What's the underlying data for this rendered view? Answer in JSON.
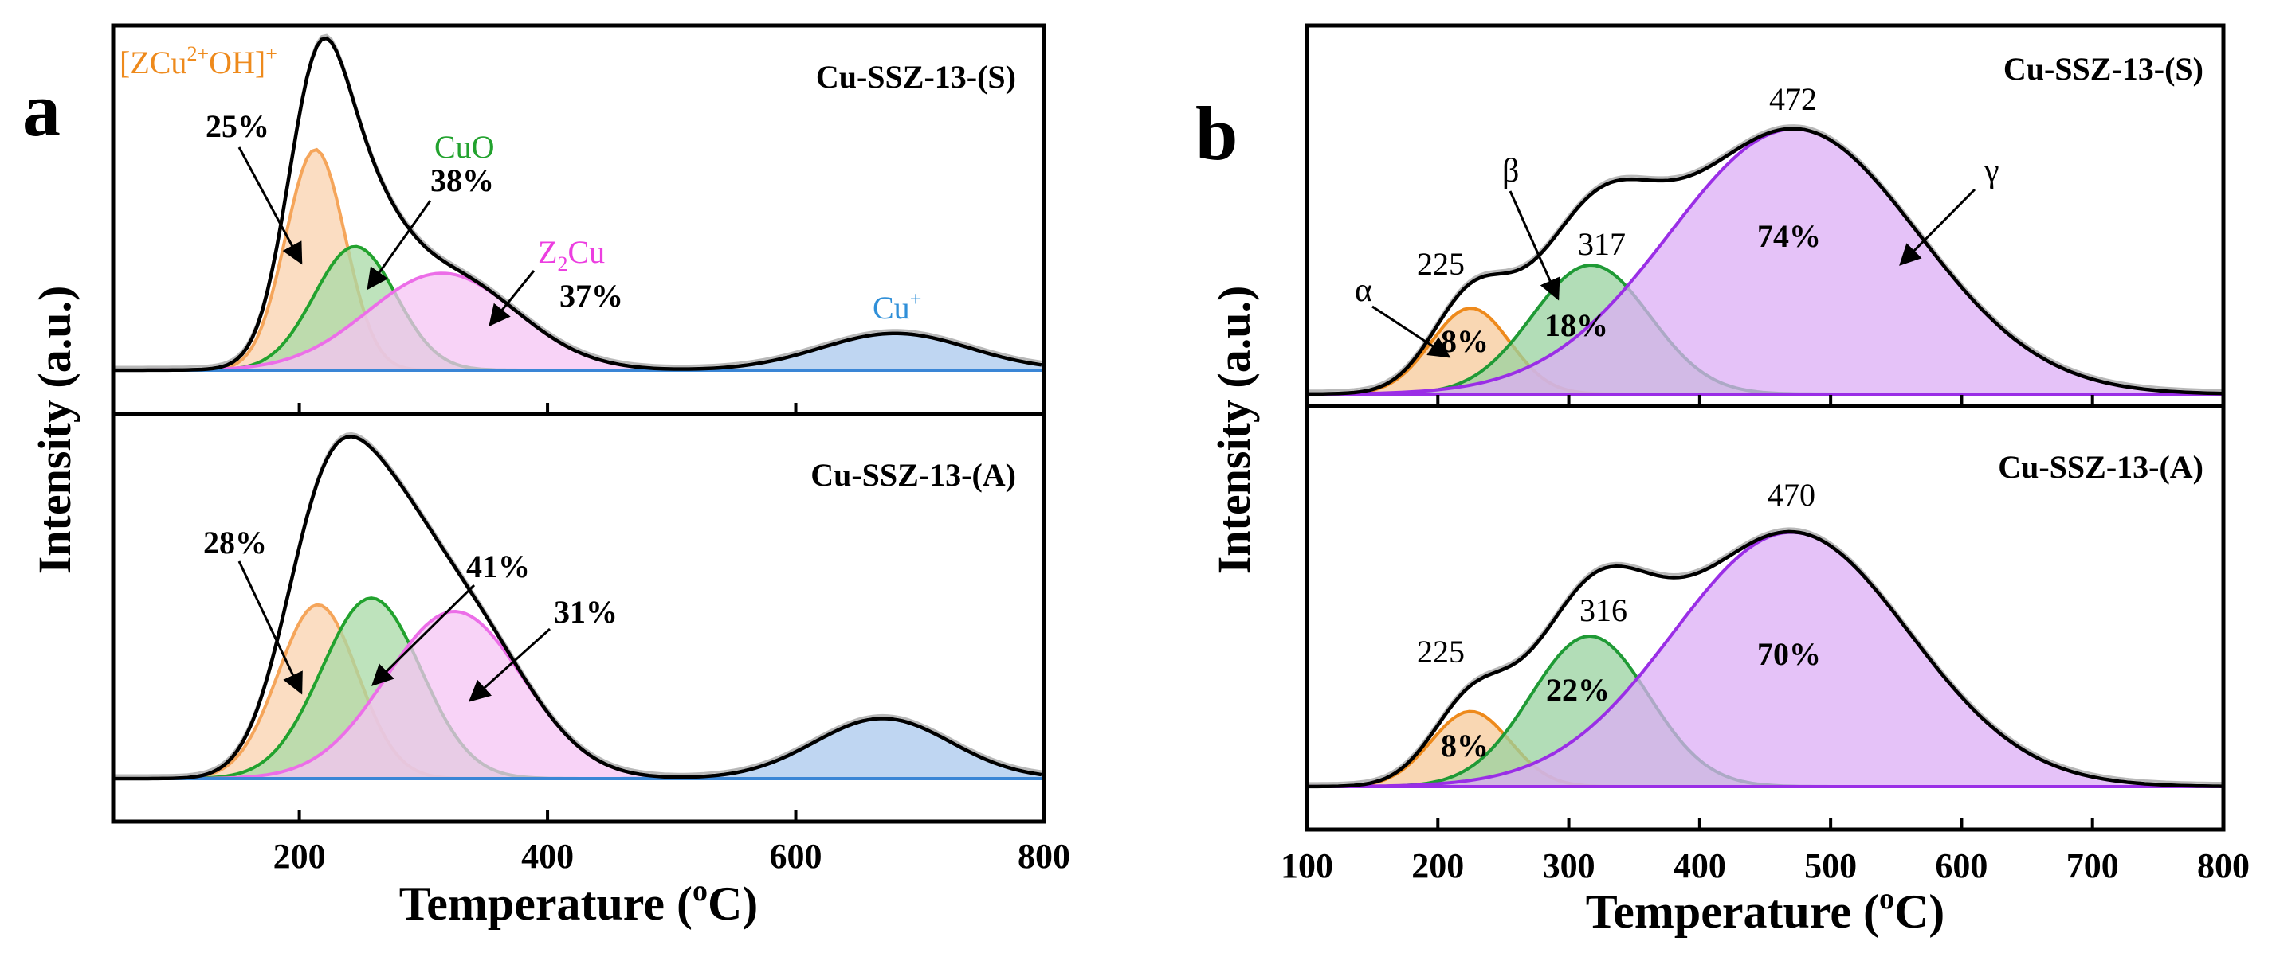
{
  "figure_label_a": "a",
  "figure_label_b": "b",
  "chart_data": [
    {
      "type": "area",
      "panel": "a",
      "xlabel": "Temperature (oC)",
      "xlabel_main": "Temperature (",
      "xlabel_sup": "o",
      "xlabel_end": "C)",
      "ylabel": "Intensity (a.u.)",
      "xlim": [
        50,
        800
      ],
      "xticks": [
        200,
        400,
        600,
        800
      ],
      "subplots": [
        {
          "title": "Cu-SSZ-13-(S)",
          "peaks": [
            {
              "name": "[ZCu2+OH]+",
              "center": 213,
              "height": 0.66,
              "width": 24,
              "color": "#f5a55a",
              "fill": "#f9d2ae",
              "pct": "25%"
            },
            {
              "name": "CuO",
              "center": 245,
              "height": 0.37,
              "width": 33,
              "color": "#22a22e",
              "fill": "#a8d9a5",
              "pct": "38%"
            },
            {
              "name": "Z2Cu",
              "center": 315,
              "height": 0.29,
              "width": 60,
              "color": "#ec6ee8",
              "fill": "#f6c4f4",
              "pct": "37%"
            },
            {
              "name": "Cu+",
              "center": 680,
              "height": 0.11,
              "width": 60,
              "color": "#4a90d9",
              "fill": "#a9c8ee",
              "pct": ""
            }
          ],
          "labels": {
            "p1_name": "[ZCu",
            "p1_sup": "2+",
            "p1_mid": "OH]",
            "p1_sup2": "+",
            "p2_name": "CuO",
            "p3_name": "Z",
            "p3_sub": "2",
            "p3_end": "Cu",
            "p4_name": "Cu",
            "p4_sup": "+"
          }
        },
        {
          "title": "Cu-SSZ-13-(A)",
          "peaks": [
            {
              "name": "[ZCu2+OH]+",
              "center": 215,
              "height": 0.52,
              "width": 32,
              "color": "#f5a55a",
              "fill": "#f9d2ae",
              "pct": "28%"
            },
            {
              "name": "CuO",
              "center": 258,
              "height": 0.54,
              "width": 40,
              "color": "#22a22e",
              "fill": "#a8d9a5",
              "pct": "41%"
            },
            {
              "name": "Z2Cu",
              "center": 325,
              "height": 0.5,
              "width": 55,
              "color": "#ec6ee8",
              "fill": "#f6c4f4",
              "pct": "31%"
            },
            {
              "name": "Cu+",
              "center": 670,
              "height": 0.18,
              "width": 55,
              "color": "#4a90d9",
              "fill": "#a9c8ee",
              "pct": ""
            }
          ]
        }
      ]
    },
    {
      "type": "area",
      "panel": "b",
      "xlabel": "Temperature (oC)",
      "xlabel_main": "Temperature (",
      "xlabel_sup": "o",
      "xlabel_end": "C)",
      "ylabel": "Intensity (a.u.)",
      "xlim": [
        100,
        800
      ],
      "xticks": [
        100,
        200,
        300,
        400,
        500,
        600,
        700,
        800
      ],
      "subplots": [
        {
          "title": "Cu-SSZ-13-(S)",
          "peaks": [
            {
              "name": "α",
              "center": 225,
              "height": 0.24,
              "width": 30,
              "color": "#ee8a1c",
              "fill": "#f7c99a",
              "pct": "8%",
              "peak_label": "225"
            },
            {
              "name": "β",
              "center": 317,
              "height": 0.36,
              "width": 45,
              "color": "#1f9a35",
              "fill": "#98d19f",
              "pct": "18%",
              "peak_label": "317"
            },
            {
              "name": "γ",
              "center": 472,
              "height": 0.74,
              "width": 95,
              "color": "#9a2ee6",
              "fill": "#dcaef5",
              "pct": "74%",
              "peak_label": "472"
            }
          ],
          "greek": {
            "alpha": "α",
            "beta": "β",
            "gamma": "γ"
          }
        },
        {
          "title": "Cu-SSZ-13-(A)",
          "peaks": [
            {
              "name": "α",
              "center": 225,
              "height": 0.21,
              "width": 30,
              "color": "#ee8a1c",
              "fill": "#f7c99a",
              "pct": "8%",
              "peak_label": "225"
            },
            {
              "name": "β",
              "center": 316,
              "height": 0.42,
              "width": 45,
              "color": "#1f9a35",
              "fill": "#98d19f",
              "pct": "22%",
              "peak_label": "316"
            },
            {
              "name": "γ",
              "center": 470,
              "height": 0.71,
              "width": 90,
              "color": "#9a2ee6",
              "fill": "#dcaef5",
              "pct": "70%",
              "peak_label": "470"
            }
          ]
        }
      ]
    }
  ]
}
